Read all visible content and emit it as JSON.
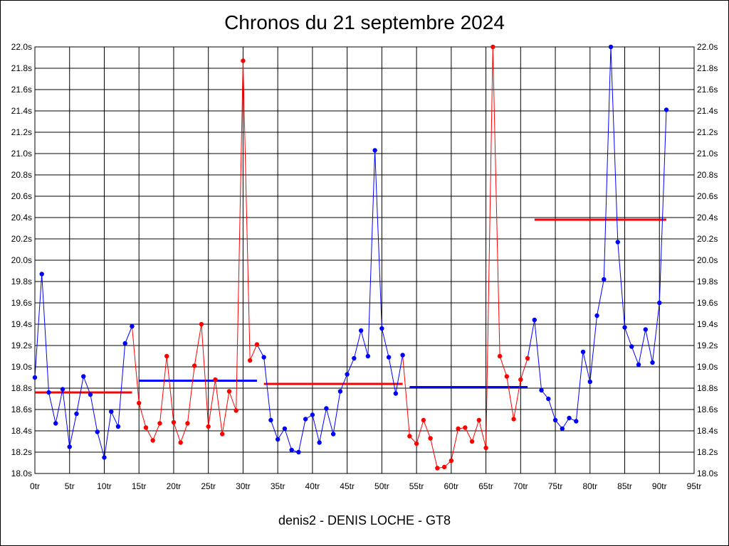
{
  "chart_data": {
    "type": "line",
    "title": "Chronos du 21 septembre 2024",
    "subtitle": "denis2 - DENIS LOCHE - GT8",
    "x_ticks": [
      "0tr",
      "5tr",
      "10tr",
      "15tr",
      "20tr",
      "25tr",
      "30tr",
      "35tr",
      "40tr",
      "45tr",
      "50tr",
      "55tr",
      "60tr",
      "65tr",
      "70tr",
      "75tr",
      "80tr",
      "85tr",
      "90tr",
      "95tr"
    ],
    "x_tick_values": [
      0,
      5,
      10,
      15,
      20,
      25,
      30,
      35,
      40,
      45,
      50,
      55,
      60,
      65,
      70,
      75,
      80,
      85,
      90,
      95
    ],
    "y_ticks": [
      "18.0s",
      "18.2s",
      "18.4s",
      "18.6s",
      "18.8s",
      "19.0s",
      "19.2s",
      "19.4s",
      "19.6s",
      "19.8s",
      "20.0s",
      "20.2s",
      "20.4s",
      "20.6s",
      "20.8s",
      "21.0s",
      "21.2s",
      "21.4s",
      "21.6s",
      "21.8s",
      "22.0s"
    ],
    "xlim": [
      0,
      95
    ],
    "ylim": [
      18.0,
      22.0
    ],
    "grid": true,
    "series": [
      {
        "color": "#0000ff",
        "points": [
          [
            0,
            18.9
          ],
          [
            1,
            19.87
          ],
          [
            2,
            18.76
          ],
          [
            3,
            18.47
          ],
          [
            4,
            18.79
          ],
          [
            5,
            18.25
          ],
          [
            6,
            18.56
          ],
          [
            7,
            18.91
          ],
          [
            8,
            18.74
          ],
          [
            9,
            18.39
          ],
          [
            10,
            18.15
          ],
          [
            11,
            18.58
          ],
          [
            12,
            18.44
          ],
          [
            13,
            19.22
          ],
          [
            14,
            19.38
          ]
        ]
      },
      {
        "color": "#ff0000",
        "points": [
          [
            15,
            18.66
          ],
          [
            16,
            18.43
          ],
          [
            17,
            18.31
          ],
          [
            18,
            18.47
          ],
          [
            19,
            19.1
          ],
          [
            20,
            18.48
          ],
          [
            21,
            18.29
          ],
          [
            22,
            18.47
          ],
          [
            23,
            19.01
          ],
          [
            24,
            19.4
          ],
          [
            25,
            18.44
          ],
          [
            26,
            18.88
          ],
          [
            27,
            18.37
          ],
          [
            28,
            18.77
          ],
          [
            29,
            18.59
          ],
          [
            30,
            21.87
          ],
          [
            31,
            19.06
          ],
          [
            32,
            19.21
          ]
        ]
      },
      {
        "color": "#0000ff",
        "points": [
          [
            33,
            19.09
          ],
          [
            34,
            18.5
          ],
          [
            35,
            18.32
          ],
          [
            36,
            18.42
          ],
          [
            37,
            18.22
          ],
          [
            38,
            18.2
          ],
          [
            39,
            18.51
          ],
          [
            40,
            18.55
          ],
          [
            41,
            18.29
          ],
          [
            42,
            18.61
          ],
          [
            43,
            18.37
          ],
          [
            44,
            18.77
          ],
          [
            45,
            18.93
          ],
          [
            46,
            19.08
          ],
          [
            47,
            19.34
          ],
          [
            48,
            19.1
          ],
          [
            49,
            21.03
          ],
          [
            50,
            19.36
          ],
          [
            51,
            19.09
          ],
          [
            52,
            18.75
          ],
          [
            53,
            19.11
          ]
        ]
      },
      {
        "color": "#ff0000",
        "points": [
          [
            54,
            18.35
          ],
          [
            55,
            18.28
          ],
          [
            56,
            18.5
          ],
          [
            57,
            18.33
          ],
          [
            58,
            18.05
          ],
          [
            59,
            18.06
          ],
          [
            60,
            18.12
          ],
          [
            61,
            18.42
          ],
          [
            62,
            18.43
          ],
          [
            63,
            18.3
          ],
          [
            64,
            18.5
          ],
          [
            65,
            18.24
          ],
          [
            66,
            22.0
          ],
          [
            67,
            19.1
          ],
          [
            68,
            18.91
          ],
          [
            69,
            18.51
          ],
          [
            70,
            18.88
          ],
          [
            71,
            19.08
          ]
        ]
      },
      {
        "color": "#0000ff",
        "points": [
          [
            72,
            19.44
          ],
          [
            73,
            18.78
          ],
          [
            74,
            18.7
          ],
          [
            75,
            18.5
          ],
          [
            76,
            18.42
          ],
          [
            77,
            18.52
          ],
          [
            78,
            18.49
          ],
          [
            79,
            19.14
          ],
          [
            80,
            18.86
          ],
          [
            81,
            19.48
          ],
          [
            82,
            19.82
          ],
          [
            83,
            22.0
          ],
          [
            84,
            20.17
          ],
          [
            85,
            19.37
          ],
          [
            86,
            19.19
          ],
          [
            87,
            19.02
          ],
          [
            88,
            19.35
          ],
          [
            89,
            19.04
          ],
          [
            90,
            19.6
          ],
          [
            91,
            21.41
          ]
        ]
      }
    ],
    "averages": [
      {
        "color": "#ff0000",
        "x": [
          0,
          14
        ],
        "y": 18.76
      },
      {
        "color": "#0000ff",
        "x": [
          15,
          32
        ],
        "y": 18.87
      },
      {
        "color": "#ff0000",
        "x": [
          33,
          53
        ],
        "y": 18.84
      },
      {
        "color": "#0000ff",
        "x": [
          54,
          71
        ],
        "y": 18.81
      },
      {
        "color": "#ff0000",
        "x": [
          72,
          91
        ],
        "y": 20.38
      }
    ]
  }
}
